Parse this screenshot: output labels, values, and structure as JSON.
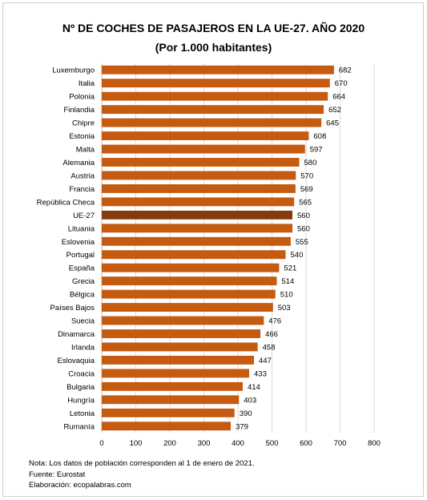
{
  "chart_data": {
    "type": "bar",
    "orientation": "horizontal",
    "title": "Nº DE COCHES DE PASAJEROS EN LA UE-27. AÑO 2020",
    "subtitle": "(Por 1.000 habitantes)",
    "categories": [
      "Luxemburgo",
      "Italia",
      "Polonia",
      "Finlandia",
      "Chipre",
      "Estonia",
      "Malta",
      "Alemania",
      "Austria",
      "Francia",
      "República Checa",
      "UE-27",
      "Lituania",
      "Eslovenia",
      "Portugal",
      "España",
      "Grecia",
      "Bélgica",
      "Países Bajos",
      "Suecia",
      "Dinamarca",
      "Irlanda",
      "Eslovaquia",
      "Croacia",
      "Bulgaria",
      "Hungría",
      "Letonia",
      "Rumanía"
    ],
    "values": [
      682,
      670,
      664,
      652,
      645,
      608,
      597,
      580,
      570,
      569,
      565,
      560,
      560,
      555,
      540,
      521,
      514,
      510,
      503,
      476,
      466,
      458,
      447,
      433,
      414,
      403,
      390,
      379
    ],
    "highlight": "UE-27",
    "xlim": [
      0,
      800
    ],
    "xticks": [
      0,
      100,
      200,
      300,
      400,
      500,
      600,
      700,
      800
    ],
    "grid": "vertical",
    "colors": {
      "bar": "#c55a11",
      "highlight": "#843c0c",
      "grid": "#d9d9d9"
    },
    "xlabel": "",
    "ylabel": ""
  },
  "notes": [
    "Nota: Los datos de población corresponden al 1 de enero de 2021.",
    "Fuente: Eurostat",
    "Elaboración: ecopalabras.com"
  ]
}
